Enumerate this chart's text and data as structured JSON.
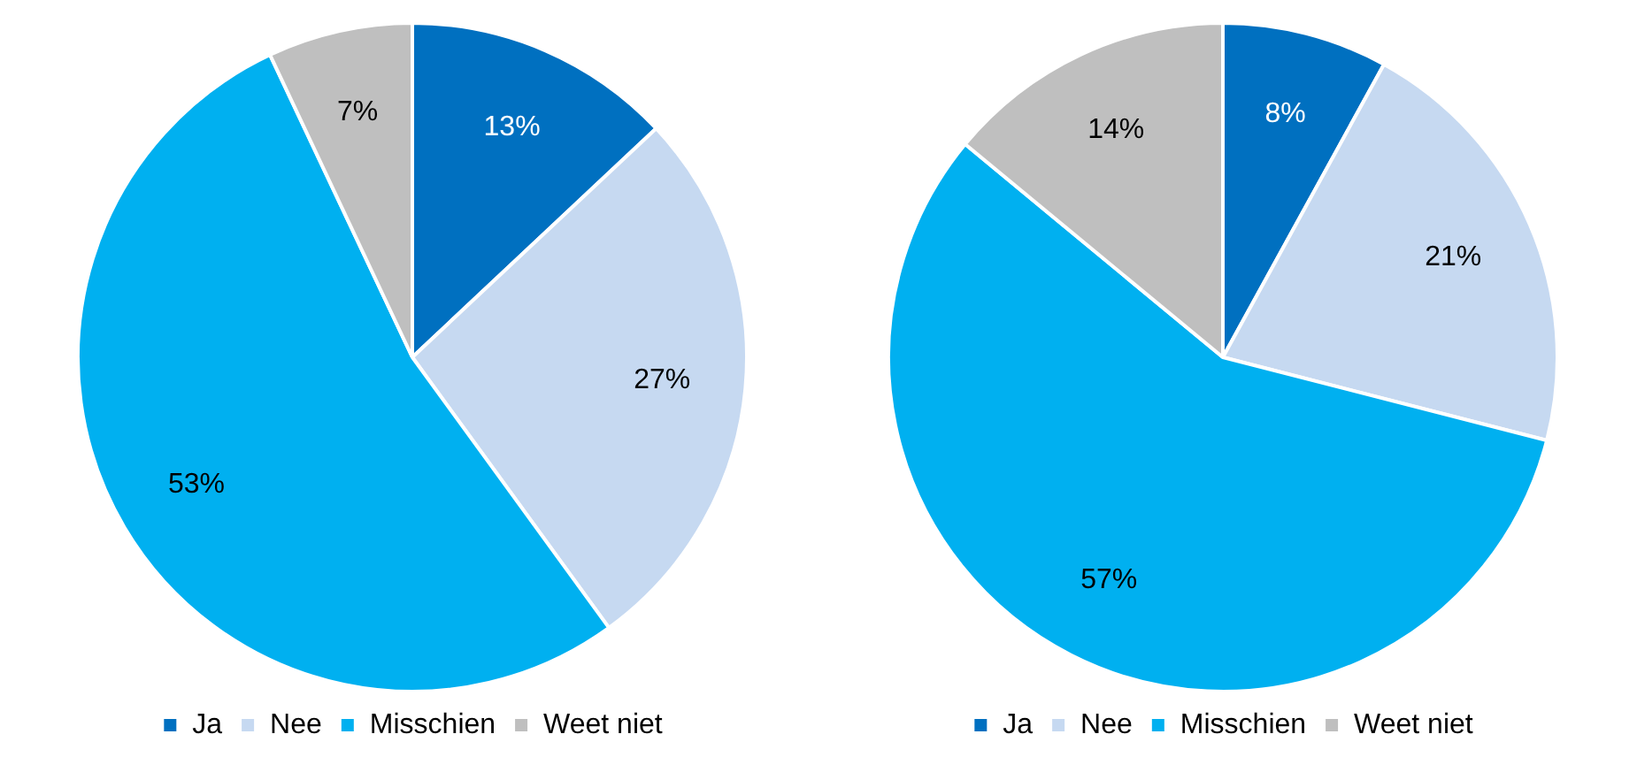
{
  "chart_data": [
    {
      "type": "pie",
      "categories": [
        "Ja",
        "Nee",
        "Misschien",
        "Weet niet"
      ],
      "values": [
        13,
        27,
        53,
        7
      ],
      "colors": [
        "#0070c0",
        "#c6d9f1",
        "#00b0f0",
        "#bfbfbf"
      ],
      "value_labels": [
        "13%",
        "27%",
        "53%",
        "7%"
      ],
      "legend": "bottom"
    },
    {
      "type": "pie",
      "categories": [
        "Ja",
        "Nee",
        "Misschien",
        "Weet niet"
      ],
      "values": [
        8,
        21,
        57,
        14
      ],
      "colors": [
        "#0070c0",
        "#c6d9f1",
        "#00b0f0",
        "#bfbfbf"
      ],
      "value_labels": [
        "8%",
        "21%",
        "57%",
        "14%"
      ],
      "legend": "bottom"
    }
  ]
}
